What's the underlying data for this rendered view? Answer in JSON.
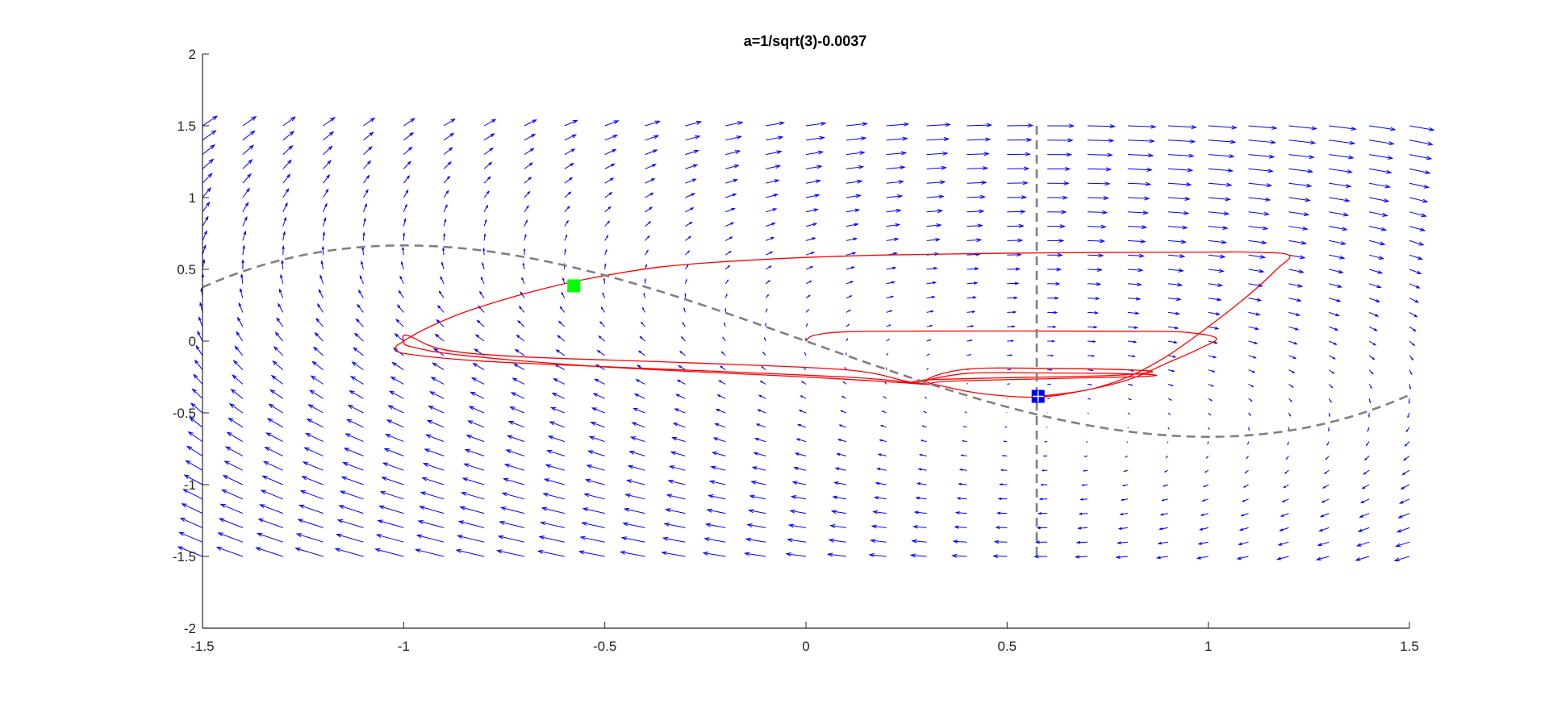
{
  "chart_data": {
    "type": "line",
    "title": "a=1/sqrt(3)-0.0037",
    "xlabel": "",
    "ylabel": "",
    "xlim": [
      -1.5,
      1.5
    ],
    "ylim": [
      -2,
      2
    ],
    "x_ticks": [
      "-1.5",
      "-1",
      "-0.5",
      "0",
      "0.5",
      "1",
      "1.5"
    ],
    "y_ticks": [
      "-2",
      "-1.5",
      "-1",
      "-0.5",
      "0",
      "0.5",
      "1",
      "1.5",
      "2"
    ],
    "grid": false,
    "parameter_a": 0.5736,
    "vector_field": {
      "x_range": [
        -1.5,
        1.5
      ],
      "x_step": 0.1,
      "y_range": [
        -1.5,
        1.5
      ],
      "y_step": 0.1,
      "u": "y - (x^3/3 - x)",
      "v": "a - x",
      "color": "#0000ff"
    },
    "nullclines": [
      {
        "kind": "cubic",
        "equation": "y = x^3/3 - x",
        "x_range": [
          -1.5,
          1.5
        ],
        "style": "dashed",
        "color": "#808080"
      },
      {
        "kind": "vertical",
        "equation": "x = a",
        "y_range": [
          -1.5,
          1.5
        ],
        "style": "dashed",
        "color": "#808080"
      }
    ],
    "markers": [
      {
        "x": -0.577,
        "y": 0.385,
        "shape": "square",
        "color": "#00ff00"
      },
      {
        "x": 0.577,
        "y": -0.385,
        "shape": "square",
        "color": "#0000ff"
      }
    ],
    "trajectory": {
      "color": "#ff0000",
      "points": [
        [
          0.0,
          0.0
        ],
        [
          0.02,
          0.04
        ],
        [
          0.1,
          0.065
        ],
        [
          0.3,
          0.07
        ],
        [
          0.6,
          0.07
        ],
        [
          0.85,
          0.068
        ],
        [
          0.95,
          0.06
        ],
        [
          1.02,
          0.02
        ],
        [
          0.98,
          -0.05
        ],
        [
          0.9,
          -0.15
        ],
        [
          0.8,
          -0.27
        ],
        [
          0.68,
          -0.35
        ],
        [
          0.577,
          -0.39
        ],
        [
          0.45,
          -0.37
        ],
        [
          0.35,
          -0.32
        ],
        [
          0.3,
          -0.27
        ],
        [
          0.4,
          -0.195
        ],
        [
          0.6,
          -0.19
        ],
        [
          0.8,
          -0.2
        ],
        [
          0.86,
          -0.215
        ],
        [
          0.75,
          -0.24
        ],
        [
          0.5,
          -0.255
        ],
        [
          0.3,
          -0.27
        ],
        [
          0.27,
          -0.29
        ],
        [
          0.4,
          -0.225
        ],
        [
          0.6,
          -0.222
        ],
        [
          0.83,
          -0.23
        ],
        [
          0.85,
          -0.245
        ],
        [
          0.6,
          -0.262
        ],
        [
          0.35,
          -0.28
        ],
        [
          0.3,
          -0.3
        ],
        [
          0.24,
          -0.29
        ],
        [
          0.0,
          -0.25
        ],
        [
          -0.5,
          -0.18
        ],
        [
          -0.85,
          -0.1
        ],
        [
          -0.98,
          -0.04
        ],
        [
          -1.0,
          0.0
        ],
        [
          -0.99,
          0.04
        ],
        [
          -0.9,
          -0.06
        ],
        [
          -0.7,
          -0.11
        ],
        [
          -0.3,
          -0.15
        ],
        [
          0.1,
          -0.2
        ],
        [
          0.25,
          -0.28
        ],
        [
          0.3,
          -0.3
        ],
        [
          0.1,
          -0.25
        ],
        [
          -0.4,
          -0.19
        ],
        [
          -0.8,
          -0.14
        ],
        [
          -0.99,
          -0.09
        ],
        [
          -1.02,
          -0.05
        ],
        [
          -1.0,
          0.0
        ],
        [
          -0.95,
          0.08
        ],
        [
          -0.85,
          0.2
        ],
        [
          -0.7,
          0.33
        ],
        [
          -0.55,
          0.43
        ],
        [
          -0.35,
          0.52
        ],
        [
          -0.1,
          0.57
        ],
        [
          0.2,
          0.6
        ],
        [
          0.6,
          0.615
        ],
        [
          1.0,
          0.62
        ],
        [
          1.1,
          0.62
        ],
        [
          1.2,
          0.6
        ],
        [
          1.17,
          0.5
        ],
        [
          1.1,
          0.32
        ],
        [
          1.0,
          0.1
        ],
        [
          0.9,
          -0.1
        ],
        [
          0.8,
          -0.25
        ],
        [
          0.7,
          -0.34
        ],
        [
          0.577,
          -0.385
        ]
      ]
    }
  }
}
